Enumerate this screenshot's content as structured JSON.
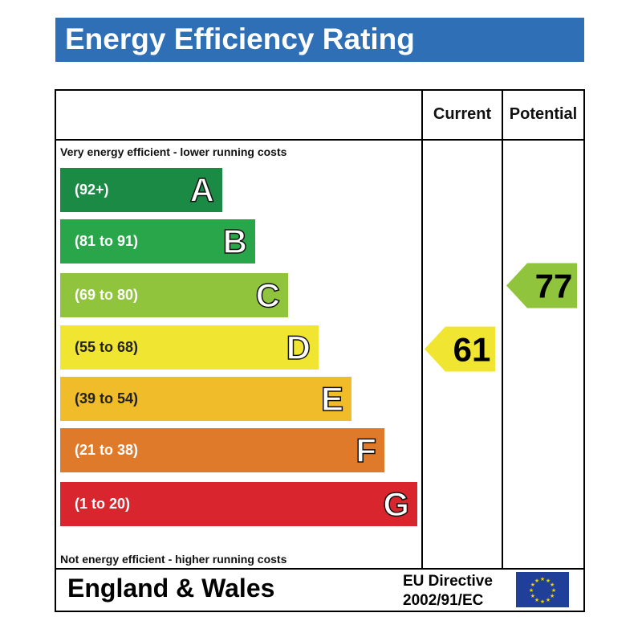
{
  "title": "Energy Efficiency Rating",
  "columns": {
    "current": "Current",
    "potential": "Potential"
  },
  "notes": {
    "top": "Very energy efficient - lower running costs",
    "bottom": "Not energy efficient - higher running costs"
  },
  "footer": {
    "country": "England & Wales",
    "directive_line1": "EU Directive",
    "directive_line2": "2002/91/EC"
  },
  "chart_data": {
    "type": "bar",
    "title": "Energy Efficiency Rating",
    "bands": [
      {
        "letter": "A",
        "range": "(92+)",
        "color": "#1b8a45"
      },
      {
        "letter": "B",
        "range": "(81 to 91)",
        "color": "#2aa64a"
      },
      {
        "letter": "C",
        "range": "(69 to 80)",
        "color": "#8fc43c"
      },
      {
        "letter": "D",
        "range": "(55 to 68)",
        "color": "#f0e530"
      },
      {
        "letter": "E",
        "range": "(39 to 54)",
        "color": "#f0bc2a"
      },
      {
        "letter": "F",
        "range": "(21 to 38)",
        "color": "#e07a2b"
      },
      {
        "letter": "G",
        "range": "(1 to 20)",
        "color": "#d9252e"
      }
    ],
    "current": {
      "value": 61,
      "band": "D",
      "color": "#f0e530"
    },
    "potential": {
      "value": 77,
      "band": "C",
      "color": "#8fc43c"
    }
  }
}
